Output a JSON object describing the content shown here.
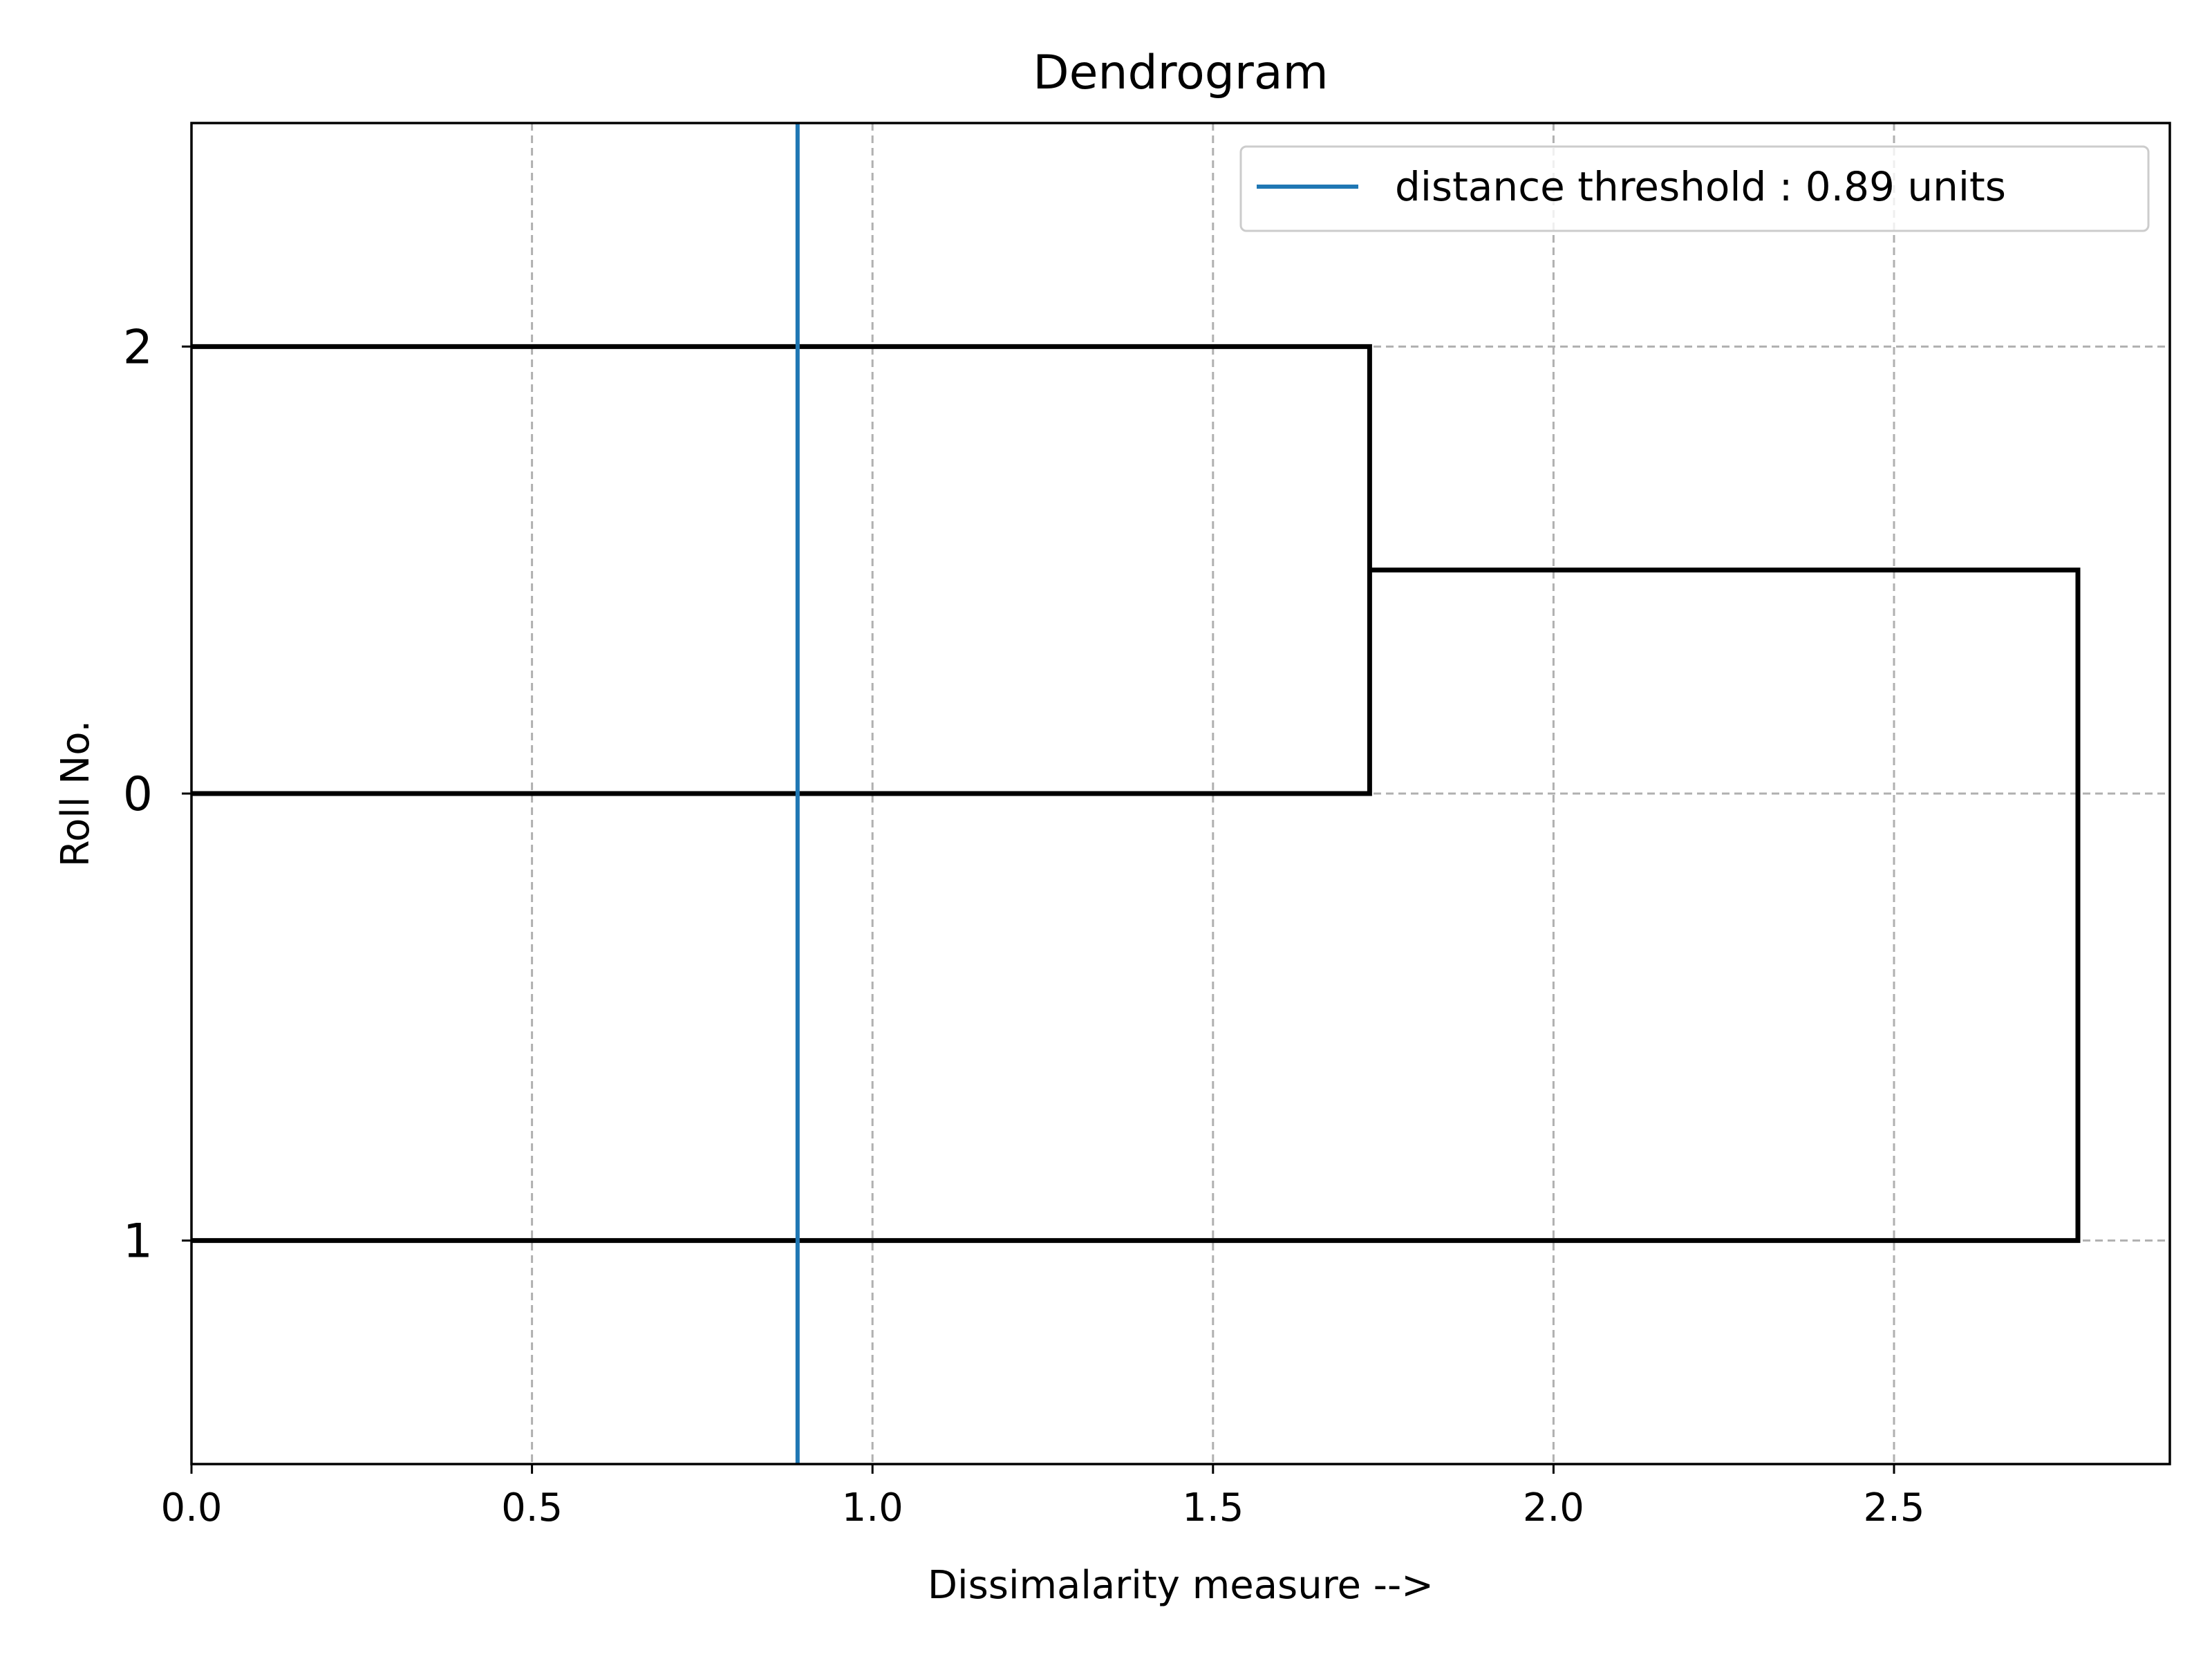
{
  "chart_data": {
    "type": "dendrogram",
    "orientation": "horizontal",
    "title": "Dendrogram",
    "xlabel": "Dissimalarity measure -->",
    "ylabel": "Roll No.",
    "xlim": [
      0,
      2.905
    ],
    "xticks": [
      0.0,
      0.5,
      1.0,
      1.5,
      2.0,
      2.5
    ],
    "xtick_labels": [
      "0.0",
      "0.5",
      "1.0",
      "1.5",
      "2.0",
      "2.5"
    ],
    "leaves": [
      "2",
      "0",
      "1"
    ],
    "links": [
      {
        "members": [
          "2",
          "0"
        ],
        "distance": 1.73
      },
      {
        "members": [
          "2+0",
          "1"
        ],
        "distance": 2.77
      }
    ],
    "threshold": {
      "value": 0.89,
      "color": "#1f77b4",
      "legend_label": "distance threshold : 0.89 units"
    },
    "grid": true,
    "legend_position": "upper right",
    "link_color": "#000000"
  }
}
